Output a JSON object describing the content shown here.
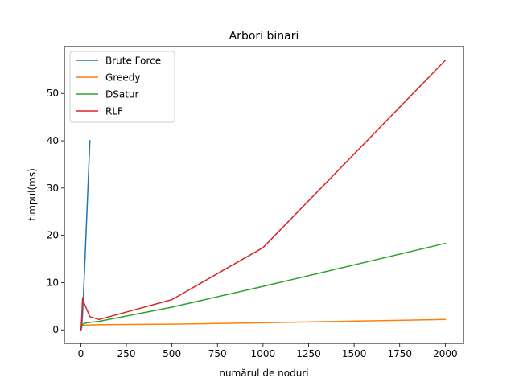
{
  "chart_data": {
    "type": "line",
    "title": "Arbori binari",
    "xlabel": "numărul de noduri",
    "ylabel": "timpul(ms)",
    "xlim": [
      -90,
      2100
    ],
    "ylim": [
      -2.85,
      59.9
    ],
    "xticks": [
      0,
      250,
      500,
      750,
      1000,
      1250,
      1500,
      1750,
      2000
    ],
    "yticks": [
      0,
      10,
      20,
      30,
      40,
      50
    ],
    "grid": false,
    "legend_position": "top-left",
    "series": [
      {
        "name": "Brute Force",
        "color": "#1f77b4",
        "x": [
          1,
          5,
          10,
          20,
          50
        ],
        "y": [
          0,
          0.4,
          3.5,
          12,
          40
        ]
      },
      {
        "name": "Greedy",
        "color": "#ff7f0e",
        "x": [
          1,
          5,
          10,
          20,
          50,
          100,
          500,
          1000,
          2000
        ],
        "y": [
          0,
          0.7,
          0.9,
          1.0,
          1.05,
          1.1,
          1.2,
          1.5,
          2.2
        ]
      },
      {
        "name": "DSatur",
        "color": "#2ca02c",
        "x": [
          1,
          5,
          10,
          20,
          50,
          100,
          500,
          1000,
          2000
        ],
        "y": [
          0,
          0.7,
          1.1,
          1.4,
          1.6,
          1.8,
          4.8,
          9.2,
          18.3
        ]
      },
      {
        "name": "RLF",
        "color": "#d62728",
        "x": [
          1,
          5,
          10,
          20,
          50,
          100,
          500,
          1000,
          2000
        ],
        "y": [
          0,
          2.5,
          6.8,
          5.5,
          2.8,
          2.2,
          6.4,
          17.4,
          57
        ]
      }
    ]
  }
}
